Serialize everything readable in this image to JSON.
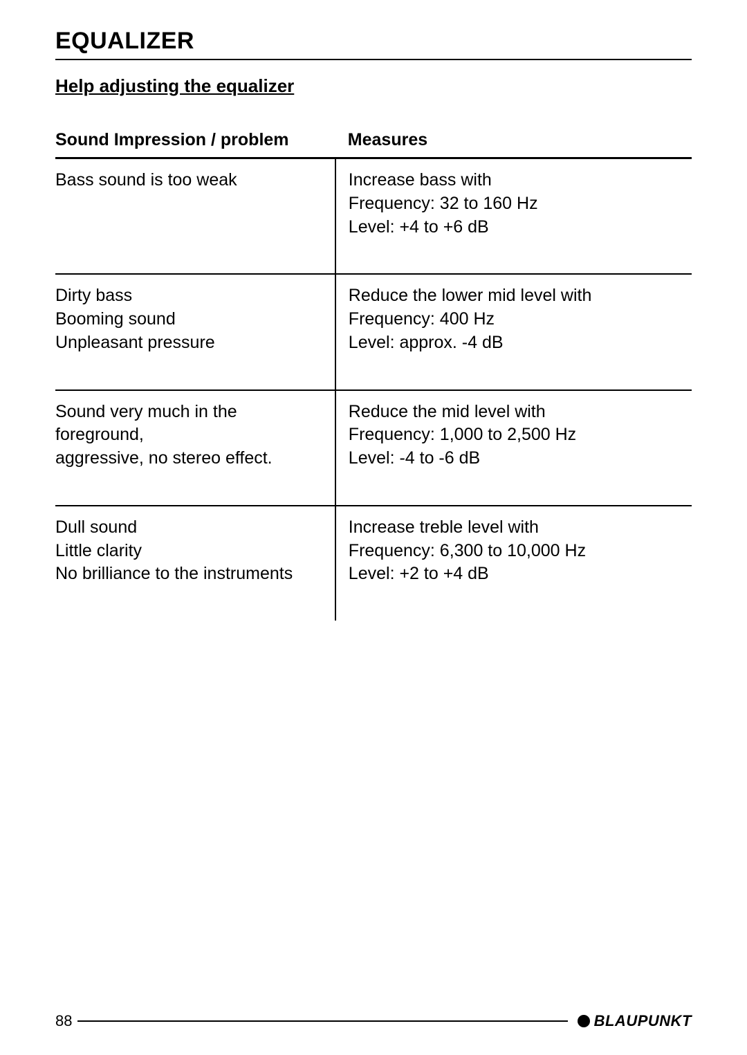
{
  "page": {
    "section_title": "EQUALIZER",
    "subtitle": "Help adjusting the equalizer",
    "page_number": "88",
    "brand": "BLAUPUNKT"
  },
  "table": {
    "columns": [
      "Sound Impression / problem",
      "Measures"
    ],
    "rows": [
      {
        "problem": [
          "Bass sound is too weak"
        ],
        "measures": [
          "Increase bass with",
          "Frequency: 32 to 160 Hz",
          "Level: +4 to +6 dB"
        ]
      },
      {
        "problem": [
          "Dirty bass",
          "Booming sound",
          "Unpleasant pressure"
        ],
        "measures": [
          "Reduce the lower mid level with",
          "Frequency: 400 Hz",
          "Level: approx. -4 dB"
        ]
      },
      {
        "problem": [
          "Sound very much in the foreground,",
          "aggressive, no stereo effect."
        ],
        "measures": [
          "Reduce the mid level with",
          "Frequency: 1,000 to 2,500 Hz",
          "Level: -4 to -6 dB"
        ]
      },
      {
        "problem": [
          "Dull sound",
          "Little clarity",
          "No brilliance to the instruments"
        ],
        "measures": [
          "Increase treble level with",
          "Frequency: 6,300 to 10,000 Hz",
          "Level: +2 to +4 dB"
        ]
      }
    ]
  },
  "style": {
    "text_color": "#000000",
    "background_color": "#ffffff",
    "title_fontsize": 34,
    "subtitle_fontsize": 26,
    "body_fontsize": 25,
    "border_color": "#000000",
    "col_problem_width_pct": 44,
    "col_measures_width_pct": 56
  }
}
